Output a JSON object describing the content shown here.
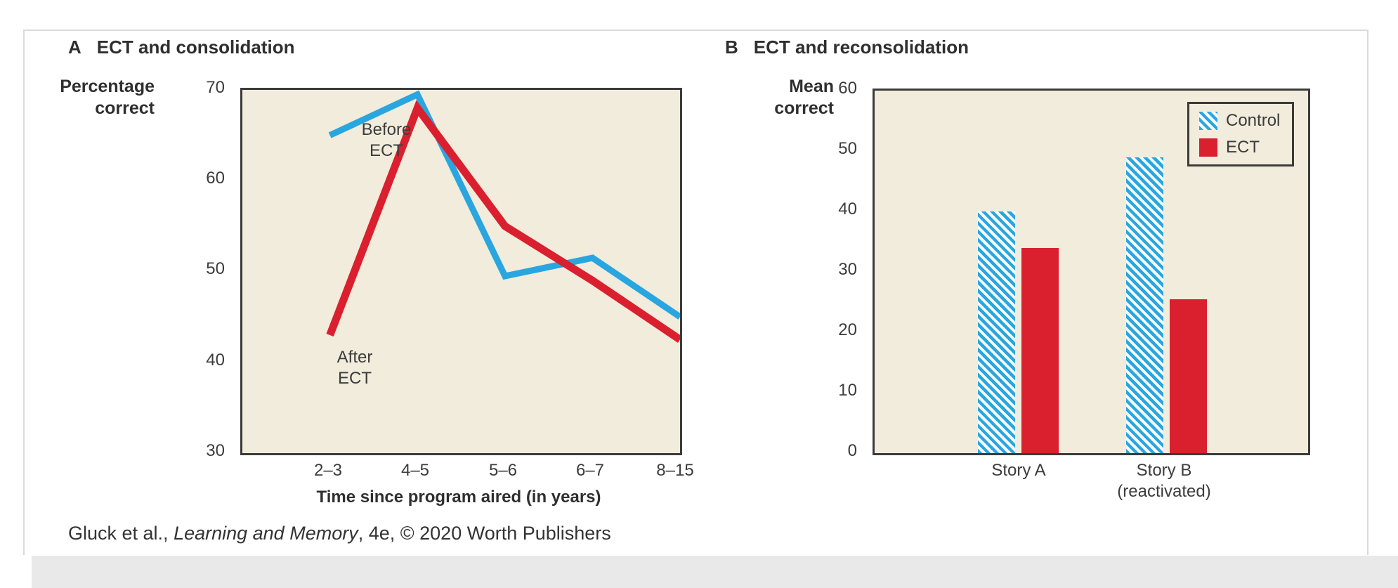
{
  "figure": {
    "caption": {
      "prefix": "Gluck et al., ",
      "italic": "Learning and Memory",
      "suffix": ", 4e, © 2020 Worth Publishers"
    }
  },
  "colors": {
    "line_blue": "#29a6df",
    "line_red": "#da1f2f",
    "plot_background": "#f1ecdb",
    "axis_dark": "#3b3b3b",
    "hatch_white": "#f8fdff"
  },
  "chart_data": [
    {
      "type": "line",
      "panel_label": "A",
      "title": "ECT and consolidation",
      "ylabel": "Percentage correct",
      "ylabel_lines": [
        "Percentage",
        "correct"
      ],
      "xlabel": "Time since program aired (in years)",
      "categories": [
        "2–3",
        "4–5",
        "5–6",
        "6–7",
        "8–15"
      ],
      "ylim": [
        30,
        70
      ],
      "yticks": [
        70,
        60,
        50,
        40,
        30
      ],
      "grid": false,
      "legend_position": "none",
      "series": [
        {
          "name": "Before ECT",
          "label_lines": [
            "Before",
            "ECT"
          ],
          "color": "#29a6df",
          "values": [
            65,
            69.5,
            49.5,
            51.5,
            45
          ]
        },
        {
          "name": "After ECT",
          "label_lines": [
            "After",
            "ECT"
          ],
          "color": "#da1f2f",
          "values": [
            43,
            68,
            55,
            49,
            42.5
          ]
        }
      ]
    },
    {
      "type": "bar",
      "panel_label": "B",
      "title": "ECT and reconsolidation",
      "ylabel": "Mean correct",
      "ylabel_lines": [
        "Mean",
        "correct"
      ],
      "xlabel": "",
      "categories": [
        "Story A",
        "Story B"
      ],
      "category_sublabels": [
        "",
        "(reactivated)"
      ],
      "ylim": [
        0,
        60
      ],
      "yticks": [
        60,
        50,
        40,
        30,
        20,
        10,
        0
      ],
      "grid": false,
      "legend_position": "top-right",
      "series": [
        {
          "name": "Control",
          "style": "hatched",
          "color": "#29a6df",
          "values": [
            40,
            49
          ]
        },
        {
          "name": "ECT",
          "style": "solid",
          "color": "#da1f2f",
          "values": [
            34,
            25.5
          ]
        }
      ]
    }
  ]
}
